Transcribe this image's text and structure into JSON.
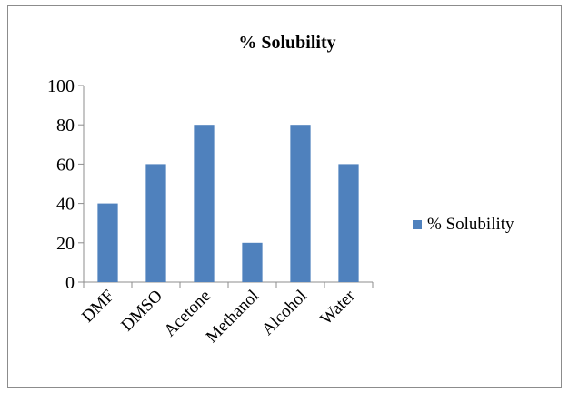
{
  "chart_data": {
    "type": "bar",
    "title": "% Solubility",
    "xlabel": "",
    "ylabel": "",
    "categories": [
      "DMF",
      "DMSO",
      "Acetone",
      "Methanol",
      "Alcohol",
      "Water"
    ],
    "series": [
      {
        "name": "% Solubility",
        "values": [
          40,
          60,
          80,
          20,
          80,
          60
        ]
      }
    ],
    "ylim": [
      0,
      100
    ],
    "yticks": [
      "0",
      "20",
      "40",
      "60",
      "80",
      "100"
    ],
    "grid": false,
    "legend_position": "right",
    "bar_color": "#4f81bd"
  }
}
